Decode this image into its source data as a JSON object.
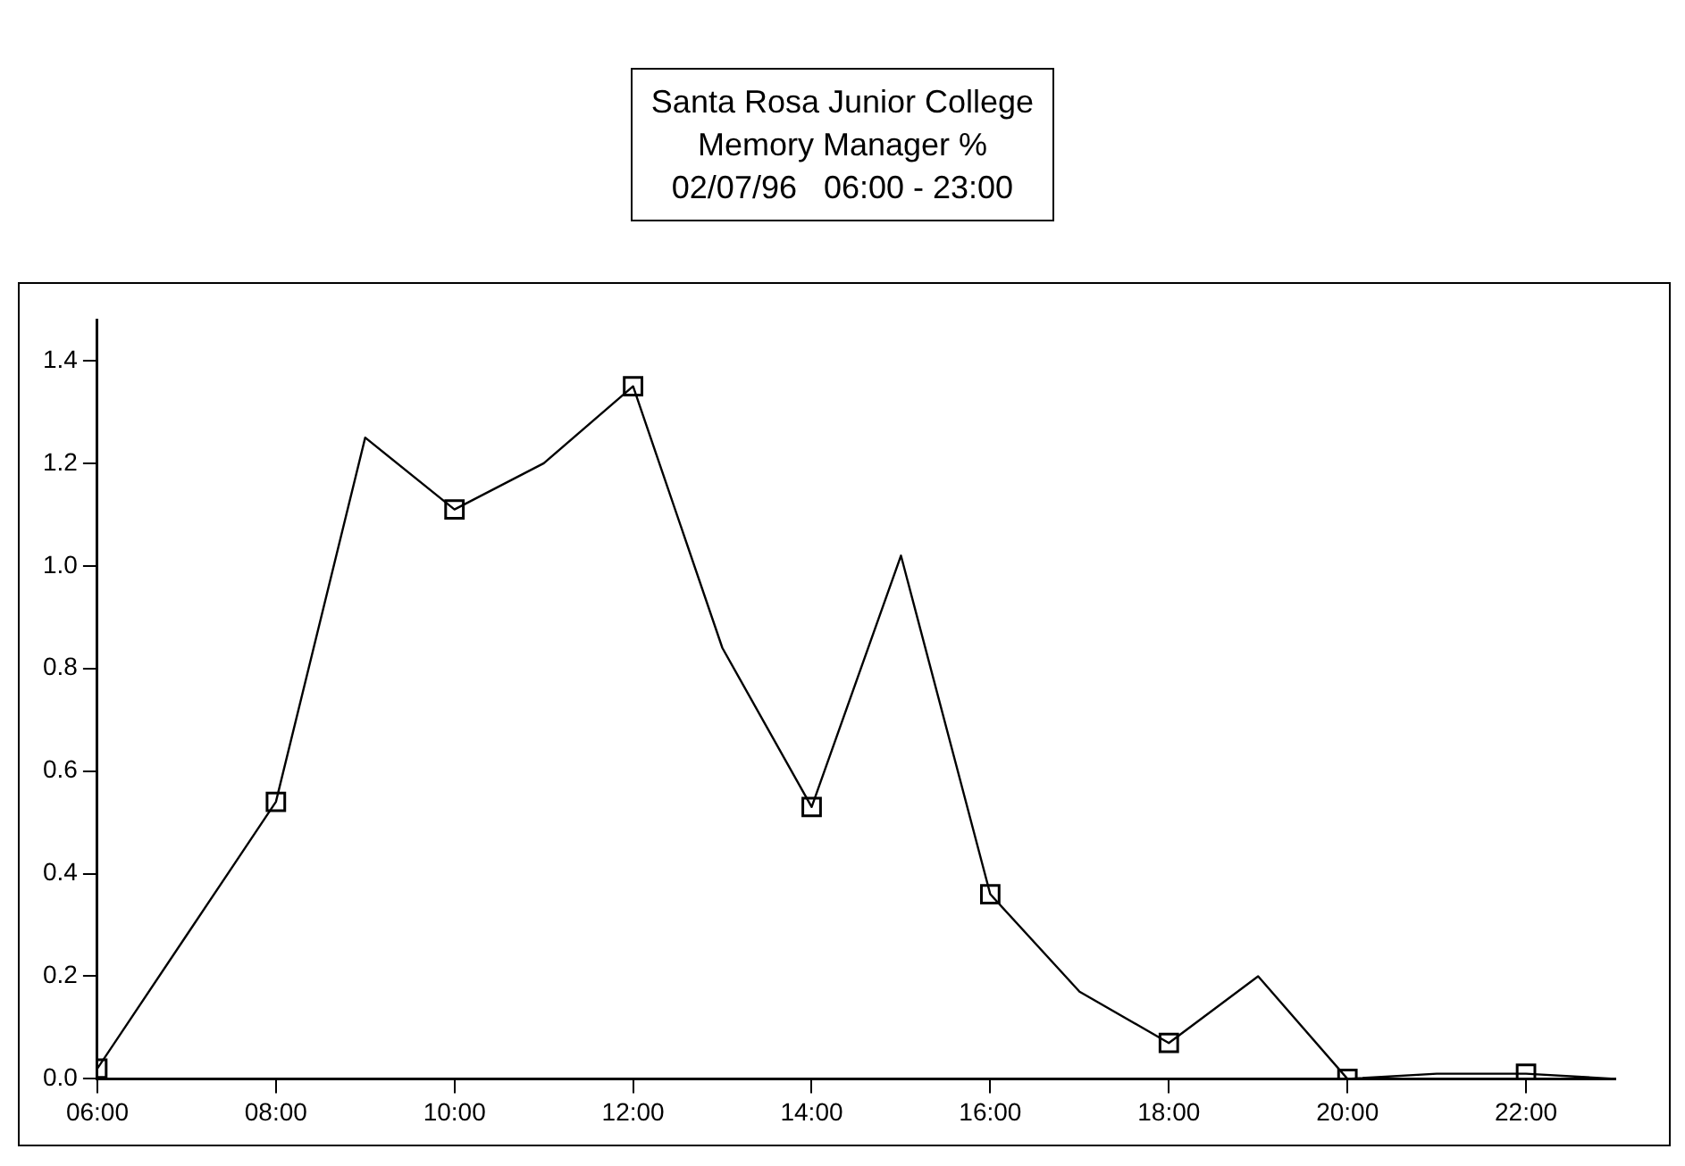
{
  "chart_data": {
    "type": "line",
    "title": "Santa Rosa Junior College\nMemory Manager %\n02/07/96   06:00 - 23:00",
    "x": [
      6,
      7,
      8,
      9,
      10,
      11,
      12,
      13,
      14,
      15,
      16,
      17,
      18,
      19,
      20,
      21,
      22,
      23
    ],
    "series": [
      {
        "color": "#000000",
        "values": [
          0.02,
          0.28,
          0.54,
          1.25,
          1.11,
          1.2,
          1.35,
          0.84,
          0.53,
          1.02,
          0.36,
          0.17,
          0.07,
          0.2,
          0.0,
          0.01,
          0.01,
          0.0
        ]
      }
    ],
    "xlim": [
      6,
      23
    ],
    "xticks": [
      {
        "value": 6,
        "label": "06:00"
      },
      {
        "value": 8,
        "label": "08:00"
      },
      {
        "value": 10,
        "label": "10:00"
      },
      {
        "value": 12,
        "label": "12:00"
      },
      {
        "value": 14,
        "label": "14:00"
      },
      {
        "value": 16,
        "label": "16:00"
      },
      {
        "value": 18,
        "label": "18:00"
      },
      {
        "value": 20,
        "label": "20:00"
      },
      {
        "value": 22,
        "label": "22:00"
      }
    ],
    "ylim": [
      0,
      1.48
    ],
    "yticks": [
      {
        "value": 0,
        "label": "0.0"
      },
      {
        "value": 0.2,
        "label": "0.2"
      },
      {
        "value": 0.4,
        "label": "0.4"
      },
      {
        "value": 0.6,
        "label": "0.6"
      },
      {
        "value": 0.8,
        "label": "0.8"
      },
      {
        "value": 1.0,
        "label": "1.0"
      },
      {
        "value": 1.2,
        "label": "1.2"
      },
      {
        "value": 1.4,
        "label": "1.4"
      }
    ],
    "grid": false,
    "legend": false,
    "marker": "square",
    "line_style": "solid"
  }
}
